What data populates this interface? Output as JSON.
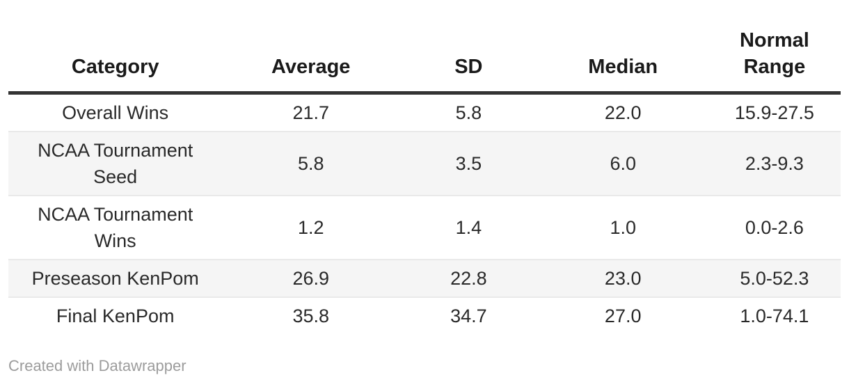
{
  "chart_data": {
    "type": "table",
    "columns": [
      "Category",
      "Average",
      "SD",
      "Median",
      "Normal Range"
    ],
    "rows": [
      [
        "Overall Wins",
        "21.7",
        "5.8",
        "22.0",
        "15.9-27.5"
      ],
      [
        "NCAA Tournament Seed",
        "5.8",
        "3.5",
        "6.0",
        "2.3-9.3"
      ],
      [
        "NCAA Tournament Wins",
        "1.2",
        "1.4",
        "1.0",
        "0.0-2.6"
      ],
      [
        "Preseason KenPom",
        "26.9",
        "22.8",
        "23.0",
        "5.0-52.3"
      ],
      [
        "Final KenPom",
        "35.8",
        "34.7",
        "27.0",
        "1.0-74.1"
      ]
    ],
    "layout_hints": {
      "header_alignment": "bottom",
      "cell_alignment": "center",
      "zebra_striping": true,
      "striped_rows": [
        2,
        4
      ]
    }
  },
  "footer": {
    "credit": "Created with Datawrapper"
  },
  "colors": {
    "background": "#ffffff",
    "header_text": "#1a1a1a",
    "header_rule": "#333333",
    "body_text": "#292929",
    "row_stripe": "#f5f5f5",
    "row_divider": "#e9e9e9",
    "footer_text": "#9c9c9c"
  }
}
